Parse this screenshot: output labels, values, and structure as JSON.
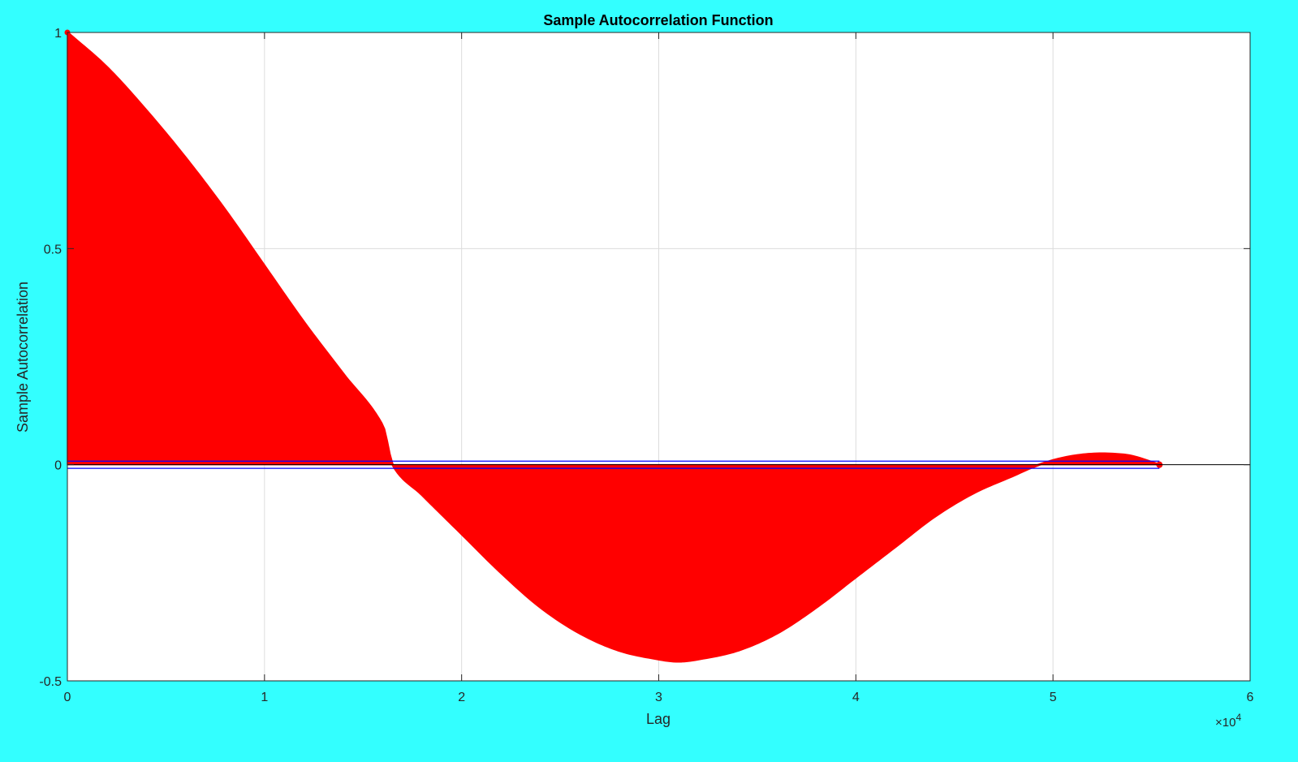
{
  "colors": {
    "figure_background": "#33ffff",
    "axes_background": "#ffffff",
    "stem": "#ff0000",
    "bounds": "#0000ff",
    "grid": "#dcdcdc",
    "axis": "#262626"
  },
  "chart_data": {
    "type": "stem",
    "title": "Sample Autocorrelation Function",
    "xlabel": "Lag",
    "ylabel": "Sample Autocorrelation",
    "x_exponent_label": {
      "base": "×10",
      "exp": "4"
    },
    "xlim": [
      0,
      60000
    ],
    "ylim": [
      -0.5,
      1
    ],
    "grid": true,
    "xticks": [
      0,
      10000,
      20000,
      30000,
      40000,
      50000,
      60000
    ],
    "xtick_labels": [
      "0",
      "1",
      "2",
      "3",
      "4",
      "5",
      "6"
    ],
    "yticks": [
      -0.5,
      0,
      0.5,
      1
    ],
    "ytick_labels": [
      "-0.5",
      "0",
      "0.5",
      "1"
    ],
    "max_lag": 55400,
    "confidence_bounds": [
      0.0083,
      -0.0083
    ],
    "acf_envelope": {
      "lag": [
        0,
        2000,
        4000,
        6000,
        8000,
        10000,
        12000,
        14000,
        16000,
        16500,
        18000,
        20000,
        22000,
        24000,
        26000,
        28000,
        30000,
        31000,
        32000,
        34000,
        36000,
        38000,
        40000,
        42000,
        44000,
        46000,
        48000,
        49000,
        50000,
        51000,
        52000,
        53000,
        54000,
        55400
      ],
      "value": [
        1.0,
        0.92,
        0.82,
        0.71,
        0.59,
        0.46,
        0.33,
        0.21,
        0.09,
        0.0,
        -0.07,
        -0.16,
        -0.25,
        -0.33,
        -0.39,
        -0.43,
        -0.45,
        -0.455,
        -0.45,
        -0.43,
        -0.39,
        -0.33,
        -0.26,
        -0.19,
        -0.12,
        -0.065,
        -0.025,
        -0.005,
        0.01,
        0.02,
        0.025,
        0.025,
        0.02,
        0.0
      ]
    }
  }
}
